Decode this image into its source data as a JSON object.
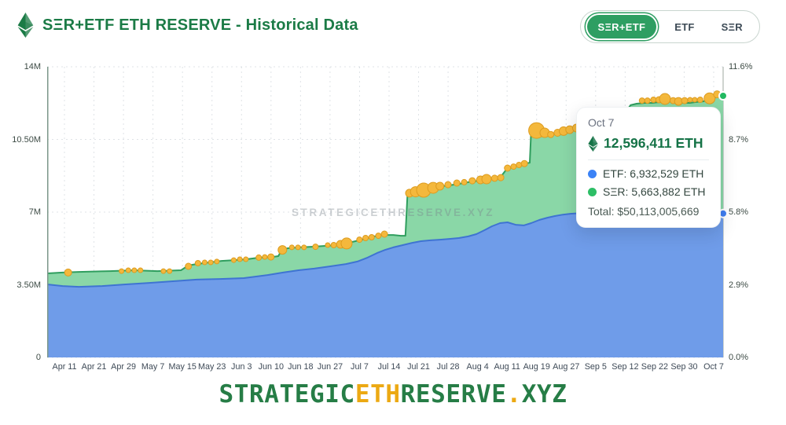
{
  "header": {
    "title": "SΞR+ETF ETH RESERVE - Historical Data",
    "accent_color": "#1b7b46"
  },
  "toggle": {
    "options": [
      {
        "label": "SΞR+ETF",
        "selected": true
      },
      {
        "label": "ETF",
        "selected": false
      },
      {
        "label": "SΞR",
        "selected": false
      }
    ],
    "selected_bg": "#2e9e62"
  },
  "watermark": "STRATEGICETHRESERVE.XYZ",
  "tooltip": {
    "date": "Oct 7",
    "total_eth": "12,596,411 ETH",
    "rows": [
      {
        "dot_color": "#3b82f6",
        "label": "ETF: 6,932,529 ETH"
      },
      {
        "dot_color": "#2dbe66",
        "label": "SΞR: 5,663,882 ETH"
      }
    ],
    "total_usd": "Total: $50,113,005,669"
  },
  "footer": {
    "parts": [
      {
        "text": "STRATEGIC",
        "color": "#267d46"
      },
      {
        "text": "ETH",
        "color": "#eca913"
      },
      {
        "text": "RESERVE",
        "color": "#267d46"
      },
      {
        "text": ".",
        "color": "#eca913"
      },
      {
        "text": "XYZ",
        "color": "#267d46"
      }
    ]
  },
  "chart_data": {
    "type": "area",
    "stacked": true,
    "title": "SΞR+ETF ETH RESERVE - Historical Data",
    "units": "points are [x_fraction_of_axis, millions_of_ETH]; marker triple adds radius px",
    "ylim_M": [
      0,
      14
    ],
    "y_left_ticks": [
      "14M",
      "10.50M",
      "7M",
      "3.50M",
      "0"
    ],
    "y_right_ticks": [
      "11.6%",
      "8.7%",
      "5.8%",
      "2.9%",
      "0.0%"
    ],
    "grid_h_values_M": [
      0,
      3.5,
      7,
      10.5,
      14
    ],
    "x_ticks": [
      "Apr 11",
      "Apr 21",
      "Apr 29",
      "May 7",
      "May 15",
      "May 23",
      "Jun 3",
      "Jun 10",
      "Jun 18",
      "Jun 27",
      "Jul 7",
      "Jul 14",
      "Jul 21",
      "Jul 28",
      "Aug 4",
      "Aug 11",
      "Aug 19",
      "Aug 27",
      "Sep 5",
      "Sep 12",
      "Sep 22",
      "Sep 30",
      "Oct 7"
    ],
    "series": [
      {
        "name": "SΞR+ETF total",
        "fill": "#8ad7a7",
        "line": "#2f9e5e",
        "points": [
          [
            0,
            4.05
          ],
          [
            0.023,
            4.09
          ],
          [
            0.047,
            4.12
          ],
          [
            0.093,
            4.16
          ],
          [
            0.128,
            4.2
          ],
          [
            0.163,
            4.16
          ],
          [
            0.198,
            4.2
          ],
          [
            0.209,
            4.43
          ],
          [
            0.221,
            4.5
          ],
          [
            0.24,
            4.58
          ],
          [
            0.258,
            4.65
          ],
          [
            0.277,
            4.69
          ],
          [
            0.295,
            4.73
          ],
          [
            0.314,
            4.81
          ],
          [
            0.333,
            4.84
          ],
          [
            0.342,
            4.88
          ],
          [
            0.347,
            5.18
          ],
          [
            0.356,
            5.26
          ],
          [
            0.372,
            5.3
          ],
          [
            0.391,
            5.33
          ],
          [
            0.409,
            5.37
          ],
          [
            0.428,
            5.41
          ],
          [
            0.442,
            5.49
          ],
          [
            0.456,
            5.6
          ],
          [
            0.47,
            5.71
          ],
          [
            0.484,
            5.83
          ],
          [
            0.498,
            5.9
          ],
          [
            0.512,
            5.9
          ],
          [
            0.523,
            5.86
          ],
          [
            0.53,
            5.86
          ],
          [
            0.533,
            7.83
          ],
          [
            0.542,
            7.91
          ],
          [
            0.551,
            7.98
          ],
          [
            0.56,
            8.06
          ],
          [
            0.572,
            8.17
          ],
          [
            0.584,
            8.25
          ],
          [
            0.595,
            8.29
          ],
          [
            0.609,
            8.36
          ],
          [
            0.623,
            8.44
          ],
          [
            0.637,
            8.51
          ],
          [
            0.651,
            8.59
          ],
          [
            0.665,
            8.63
          ],
          [
            0.672,
            8.74
          ],
          [
            0.679,
            9.04
          ],
          [
            0.688,
            9.16
          ],
          [
            0.698,
            9.27
          ],
          [
            0.707,
            9.34
          ],
          [
            0.714,
            9.38
          ],
          [
            0.716,
            10.93
          ],
          [
            0.726,
            10.86
          ],
          [
            0.735,
            10.78
          ],
          [
            0.744,
            10.74
          ],
          [
            0.753,
            10.82
          ],
          [
            0.763,
            10.9
          ],
          [
            0.772,
            10.97
          ],
          [
            0.781,
            11.05
          ],
          [
            0.791,
            11.12
          ],
          [
            0.802,
            11.16
          ],
          [
            0.814,
            11.2
          ],
          [
            0.828,
            11.27
          ],
          [
            0.84,
            11.31
          ],
          [
            0.849,
            11.35
          ],
          [
            0.853,
            11.54
          ],
          [
            0.858,
            11.92
          ],
          [
            0.863,
            12.15
          ],
          [
            0.872,
            12.22
          ],
          [
            0.884,
            12.26
          ],
          [
            0.895,
            12.26
          ],
          [
            0.907,
            12.3
          ],
          [
            0.916,
            12.33
          ],
          [
            0.926,
            12.33
          ],
          [
            0.933,
            12.3
          ],
          [
            0.942,
            12.26
          ],
          [
            0.951,
            12.26
          ],
          [
            0.96,
            12.3
          ],
          [
            0.97,
            12.33
          ],
          [
            0.979,
            12.41
          ],
          [
            0.986,
            12.48
          ],
          [
            0.993,
            12.6
          ],
          [
            1,
            12.6
          ]
        ]
      },
      {
        "name": "ETF",
        "fill": "#6f9ce9",
        "line": "#3f74d2",
        "points": [
          [
            0,
            3.52
          ],
          [
            0.023,
            3.44
          ],
          [
            0.047,
            3.4
          ],
          [
            0.081,
            3.44
          ],
          [
            0.116,
            3.52
          ],
          [
            0.151,
            3.59
          ],
          [
            0.186,
            3.67
          ],
          [
            0.221,
            3.75
          ],
          [
            0.256,
            3.78
          ],
          [
            0.291,
            3.82
          ],
          [
            0.326,
            3.97
          ],
          [
            0.349,
            4.09
          ],
          [
            0.372,
            4.2
          ],
          [
            0.395,
            4.28
          ],
          [
            0.419,
            4.39
          ],
          [
            0.442,
            4.5
          ],
          [
            0.459,
            4.62
          ],
          [
            0.474,
            4.81
          ],
          [
            0.488,
            5.03
          ],
          [
            0.5,
            5.18
          ],
          [
            0.512,
            5.3
          ],
          [
            0.526,
            5.41
          ],
          [
            0.54,
            5.52
          ],
          [
            0.553,
            5.6
          ],
          [
            0.567,
            5.64
          ],
          [
            0.581,
            5.67
          ],
          [
            0.595,
            5.71
          ],
          [
            0.609,
            5.75
          ],
          [
            0.623,
            5.83
          ],
          [
            0.635,
            5.94
          ],
          [
            0.647,
            6.13
          ],
          [
            0.658,
            6.32
          ],
          [
            0.67,
            6.47
          ],
          [
            0.681,
            6.51
          ],
          [
            0.693,
            6.39
          ],
          [
            0.705,
            6.36
          ],
          [
            0.716,
            6.47
          ],
          [
            0.728,
            6.62
          ],
          [
            0.74,
            6.73
          ],
          [
            0.751,
            6.81
          ],
          [
            0.763,
            6.88
          ],
          [
            0.774,
            6.92
          ],
          [
            0.791,
            6.96
          ],
          [
            0.814,
            6.96
          ],
          [
            0.837,
            7
          ],
          [
            0.86,
            7
          ],
          [
            0.884,
            7
          ],
          [
            0.907,
            7.04
          ],
          [
            0.93,
            7
          ],
          [
            0.953,
            7
          ],
          [
            0.977,
            6.96
          ],
          [
            1,
            6.93
          ]
        ]
      }
    ],
    "markers": {
      "name": "SΞR purchase events",
      "color": "#f4b83c",
      "border": "#dd9c20",
      "points": [
        [
          0.031,
          4.09,
          4.5
        ],
        [
          0.11,
          4.16,
          3
        ],
        [
          0.12,
          4.2,
          3
        ],
        [
          0.129,
          4.2,
          3
        ],
        [
          0.138,
          4.2,
          3
        ],
        [
          0.172,
          4.16,
          3
        ],
        [
          0.181,
          4.16,
          3
        ],
        [
          0.209,
          4.39,
          4
        ],
        [
          0.223,
          4.54,
          3.5
        ],
        [
          0.233,
          4.58,
          3
        ],
        [
          0.242,
          4.58,
          3
        ],
        [
          0.251,
          4.62,
          3
        ],
        [
          0.276,
          4.69,
          3
        ],
        [
          0.285,
          4.73,
          3
        ],
        [
          0.294,
          4.73,
          3
        ],
        [
          0.313,
          4.81,
          3.5
        ],
        [
          0.322,
          4.84,
          3
        ],
        [
          0.331,
          4.84,
          4
        ],
        [
          0.348,
          5.18,
          5.5
        ],
        [
          0.362,
          5.3,
          3
        ],
        [
          0.371,
          5.3,
          3
        ],
        [
          0.38,
          5.3,
          3
        ],
        [
          0.397,
          5.33,
          3.5
        ],
        [
          0.415,
          5.41,
          3
        ],
        [
          0.424,
          5.41,
          3.5
        ],
        [
          0.434,
          5.45,
          5
        ],
        [
          0.443,
          5.49,
          7
        ],
        [
          0.462,
          5.67,
          3.5
        ],
        [
          0.471,
          5.75,
          3.5
        ],
        [
          0.48,
          5.79,
          3.5
        ],
        [
          0.49,
          5.86,
          3.5
        ],
        [
          0.499,
          5.94,
          4
        ],
        [
          0.536,
          7.91,
          5
        ],
        [
          0.545,
          7.98,
          6.5
        ],
        [
          0.557,
          8.06,
          9
        ],
        [
          0.571,
          8.17,
          7
        ],
        [
          0.581,
          8.25,
          5
        ],
        [
          0.593,
          8.32,
          4
        ],
        [
          0.606,
          8.4,
          4
        ],
        [
          0.617,
          8.44,
          3.5
        ],
        [
          0.629,
          8.51,
          4
        ],
        [
          0.641,
          8.55,
          5
        ],
        [
          0.65,
          8.59,
          6
        ],
        [
          0.662,
          8.63,
          4
        ],
        [
          0.671,
          8.66,
          4
        ],
        [
          0.681,
          9.12,
          4
        ],
        [
          0.69,
          9.19,
          3.5
        ],
        [
          0.698,
          9.27,
          3.5
        ],
        [
          0.706,
          9.34,
          4
        ],
        [
          0.724,
          10.93,
          10
        ],
        [
          0.736,
          10.82,
          6
        ],
        [
          0.745,
          10.74,
          4
        ],
        [
          0.755,
          10.82,
          4.5
        ],
        [
          0.764,
          10.9,
          5.5
        ],
        [
          0.773,
          10.97,
          5
        ],
        [
          0.783,
          11.05,
          5
        ],
        [
          0.793,
          11.12,
          6
        ],
        [
          0.805,
          11.16,
          7
        ],
        [
          0.816,
          11.24,
          5
        ],
        [
          0.826,
          11.27,
          4
        ],
        [
          0.88,
          12.37,
          3.5
        ],
        [
          0.888,
          12.37,
          3.5
        ],
        [
          0.897,
          12.41,
          3.5
        ],
        [
          0.905,
          12.41,
          4
        ],
        [
          0.914,
          12.45,
          7
        ],
        [
          0.926,
          12.37,
          4
        ],
        [
          0.934,
          12.33,
          5
        ],
        [
          0.943,
          12.37,
          4
        ],
        [
          0.951,
          12.41,
          3
        ],
        [
          0.958,
          12.41,
          3
        ],
        [
          0.966,
          12.41,
          3.5
        ],
        [
          0.98,
          12.48,
          7
        ],
        [
          0.991,
          12.67,
          4.5
        ]
      ]
    },
    "end_dots": [
      {
        "x": 1,
        "value": 12.6,
        "color": "#22b961"
      },
      {
        "x": 1,
        "value": 6.93,
        "color": "#3f7df2"
      }
    ],
    "final_values": {
      "date": "Oct 7",
      "total_eth": 12596411,
      "etf_eth": 6932529,
      "ser_eth": 5663882,
      "total_usd": 50113005669
    }
  }
}
